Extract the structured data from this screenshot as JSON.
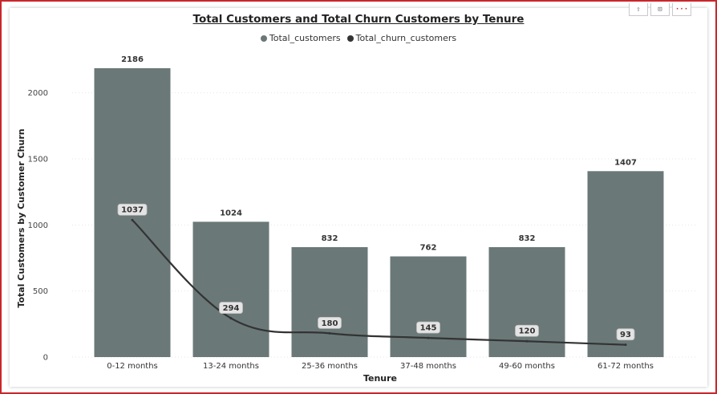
{
  "chart_data": {
    "type": "bar",
    "title": "Total Customers and Total Churn Customers by Tenure",
    "xlabel": "Tenure",
    "ylabel": "Total Customers by Customer Churn",
    "categories": [
      "0-12 months",
      "13-24 months",
      "25-36 months",
      "37-48 months",
      "49-60 months",
      "61-72 months"
    ],
    "series": [
      {
        "name": "Total_customers",
        "type": "bar",
        "color": "#6b7878",
        "values": [
          2186,
          1024,
          832,
          762,
          832,
          1407
        ]
      },
      {
        "name": "Total_churn_customers",
        "type": "line",
        "color": "#333333",
        "values": [
          1037,
          294,
          180,
          145,
          120,
          93
        ]
      }
    ],
    "ylim": [
      0,
      2186
    ],
    "yticks": [
      0,
      500,
      1000,
      1500,
      2000
    ],
    "grid": true,
    "legend_position": "top-center"
  },
  "header_icons": [
    {
      "name": "pin-icon",
      "glyph": "⇧"
    },
    {
      "name": "focus-mode-icon",
      "glyph": "⊡"
    },
    {
      "name": "more-options-icon",
      "glyph": "···"
    }
  ]
}
